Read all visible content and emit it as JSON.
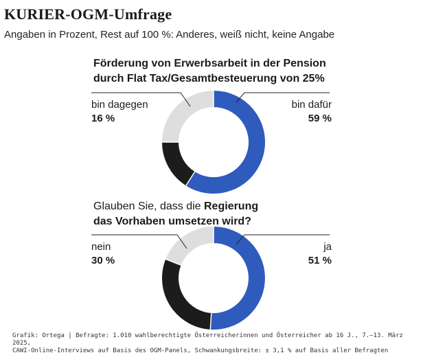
{
  "header": {
    "title": "KURIER-OGM-Umfrage",
    "subtitle": "Angaben in Prozent, Rest auf 100 %: Anderes, weiß nicht, keine Angabe"
  },
  "colors": {
    "dafuer": "#2f5bbd",
    "dagegen": "#1c1c1c",
    "rest": "#dedede",
    "leader": "#222222"
  },
  "chart_data": [
    {
      "type": "pie",
      "title_line1": "Förderung von Erwerbsarbeit in der Pension",
      "title_line2": "durch Flat Tax/Gesamtbesteuerung von 25%",
      "slices": [
        {
          "label": "bin dafür",
          "value": 59,
          "display": "59 %"
        },
        {
          "label": "bin dagegen",
          "value": 16,
          "display": "16 %"
        },
        {
          "label": "Rest",
          "value": 25
        }
      ]
    },
    {
      "type": "pie",
      "title_pre": "Glauben Sie, dass die ",
      "title_bold": "Regierung",
      "title_line2": "das Vorhaben umsetzen wird?",
      "slices": [
        {
          "label": "ja",
          "value": 51,
          "display": "51 %"
        },
        {
          "label": "nein",
          "value": 30,
          "display": "30 %"
        },
        {
          "label": "Rest",
          "value": 19
        }
      ]
    }
  ],
  "footer": {
    "line1": "Grafik: Ortega | Befragte: 1.010 wahlberechtigte Österreicherinnen und Österreicher ab 16 J., 7.–13. März 2025,",
    "line2": "CAWI-Online-Interviews  auf Basis des OGM-Panels, Schwankungsbreite: ± 3,1 % auf Basis aller Befragten"
  }
}
